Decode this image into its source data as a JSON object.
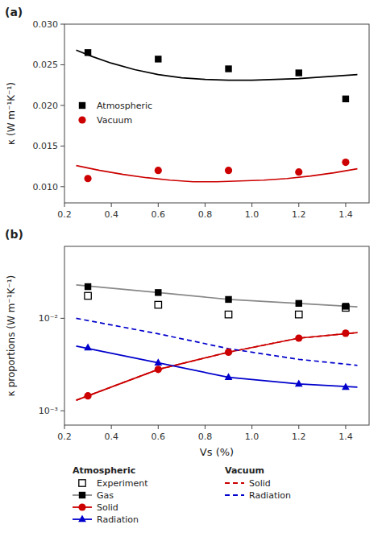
{
  "chart_data": [
    {
      "type": "scatter",
      "title": "(a)",
      "y_label": "κ (W m⁻¹K⁻¹)",
      "xlim": [
        0.2,
        1.5
      ],
      "xticks": [
        0.2,
        0.4,
        0.6,
        0.8,
        {
          "value": 1.0,
          "label": "1.0"
        },
        1.2,
        1.4
      ],
      "ylim": [
        0.008,
        0.03
      ],
      "yticks": [
        {
          "value": 0.01,
          "label": "0.010"
        },
        0.015,
        {
          "value": 0.02,
          "label": "0.020"
        },
        0.025,
        {
          "value": 0.03,
          "label": "0.030"
        }
      ],
      "grid": false,
      "legend": "center left",
      "series": [
        {
          "type": "line",
          "line_style": "solid",
          "color": "#000000",
          "x": [
            0.25,
            0.32,
            0.4,
            0.5,
            0.6,
            0.7,
            0.8,
            0.9,
            1.0,
            1.1,
            1.2,
            1.3,
            1.4,
            1.45
          ],
          "values": [
            0.0268,
            0.026,
            0.0252,
            0.0244,
            0.0238,
            0.0234,
            0.0232,
            0.0231,
            0.0231,
            0.0232,
            0.0233,
            0.0235,
            0.0237,
            0.0238
          ]
        },
        {
          "type": "line",
          "line_style": "solid",
          "color": "#cc0000",
          "x": [
            0.25,
            0.35,
            0.45,
            0.55,
            0.65,
            0.75,
            0.85,
            0.95,
            1.05,
            1.15,
            1.25,
            1.35,
            1.45
          ],
          "values": [
            0.0126,
            0.012,
            0.0115,
            0.0111,
            0.0108,
            0.0106,
            0.0106,
            0.0107,
            0.0108,
            0.011,
            0.0113,
            0.0117,
            0.0122
          ]
        },
        {
          "name": "Atmospheric",
          "type": "scatter",
          "marker": "square",
          "color": "#000000",
          "x": [
            0.3,
            0.6,
            0.9,
            1.2,
            1.4
          ],
          "values": [
            0.0265,
            0.0257,
            0.0245,
            0.024,
            0.0208
          ]
        },
        {
          "name": "Vacuum",
          "type": "scatter",
          "marker": "circle",
          "color": "#cc0000",
          "x": [
            0.3,
            0.6,
            0.9,
            1.2,
            1.4
          ],
          "values": [
            0.011,
            0.012,
            0.012,
            0.0118,
            0.013
          ]
        }
      ]
    },
    {
      "type": "scatter",
      "title": "(b)",
      "x_label": "Vs (%)",
      "y_label": "κ proportions (W m⁻¹K⁻¹)",
      "log": "y",
      "xlim": [
        0.2,
        1.5
      ],
      "xticks": [
        0.2,
        0.4,
        0.6,
        0.8,
        {
          "value": 1.0,
          "label": "1.0"
        },
        1.2,
        1.4
      ],
      "ylim": [
        0.0007,
        0.06
      ],
      "yticks": [
        {
          "value": 0.001,
          "label": "10⁻³"
        },
        {
          "value": 0.01,
          "label": "10⁻²"
        }
      ],
      "grid": false,
      "legend": "bottom",
      "series": [
        {
          "name": "Experiment",
          "group": "Atmospheric",
          "type": "scatter",
          "marker": "open-square",
          "color": "#000000",
          "x": [
            0.3,
            0.6,
            0.9,
            1.2,
            1.4
          ],
          "values": [
            0.0175,
            0.014,
            0.011,
            0.011,
            0.013
          ]
        },
        {
          "name": "Gas",
          "group": "Atmospheric",
          "type": "line",
          "line_style": "solid",
          "color": "#888888",
          "x": [
            0.25,
            0.6,
            0.9,
            1.2,
            1.45
          ],
          "values": [
            0.023,
            0.019,
            0.016,
            0.0145,
            0.0133
          ]
        },
        {
          "name": "Gas",
          "group": "Atmospheric",
          "type": "scatter",
          "marker": "square",
          "color": "#000000",
          "x": [
            0.3,
            0.6,
            0.9,
            1.2,
            1.4
          ],
          "values": [
            0.022,
            0.019,
            0.016,
            0.0145,
            0.0135
          ]
        },
        {
          "name": "Solid",
          "group": "Atmospheric",
          "type": "line",
          "line_style": "solid",
          "color": "#cc0000",
          "x": [
            0.25,
            0.6,
            0.9,
            1.2,
            1.45
          ],
          "values": [
            0.0013,
            0.0028,
            0.0043,
            0.0061,
            0.007
          ]
        },
        {
          "name": "Solid",
          "group": "Atmospheric",
          "type": "scatter",
          "marker": "circle",
          "color": "#cc0000",
          "x": [
            0.3,
            0.6,
            0.9,
            1.2,
            1.4
          ],
          "values": [
            0.00145,
            0.0028,
            0.0043,
            0.0061,
            0.0069
          ]
        },
        {
          "name": "Radiation",
          "group": "Atmospheric",
          "type": "line",
          "line_style": "solid",
          "color": "#0000cc",
          "x": [
            0.25,
            0.6,
            0.9,
            1.2,
            1.45
          ],
          "values": [
            0.005,
            0.0033,
            0.0023,
            0.00195,
            0.0018
          ]
        },
        {
          "name": "Radiation",
          "group": "Atmospheric",
          "type": "scatter",
          "marker": "triangle",
          "color": "#0000cc",
          "x": [
            0.3,
            0.6,
            0.9,
            1.2,
            1.4
          ],
          "values": [
            0.0048,
            0.0033,
            0.0023,
            0.00195,
            0.0018
          ]
        },
        {
          "name": "Solid",
          "group": "Vacuum",
          "type": "line",
          "line_style": "dashed",
          "color": "#cc0000",
          "x": [
            0.25,
            0.6,
            0.9,
            1.2,
            1.45
          ],
          "values": [
            0.0013,
            0.0028,
            0.0043,
            0.0061,
            0.007
          ]
        },
        {
          "name": "Radiation",
          "group": "Vacuum",
          "type": "line",
          "line_style": "dashed",
          "color": "#0000cc",
          "x": [
            0.25,
            0.6,
            0.9,
            1.2,
            1.45
          ],
          "values": [
            0.01,
            0.0068,
            0.0047,
            0.0036,
            0.0031
          ]
        }
      ]
    }
  ]
}
